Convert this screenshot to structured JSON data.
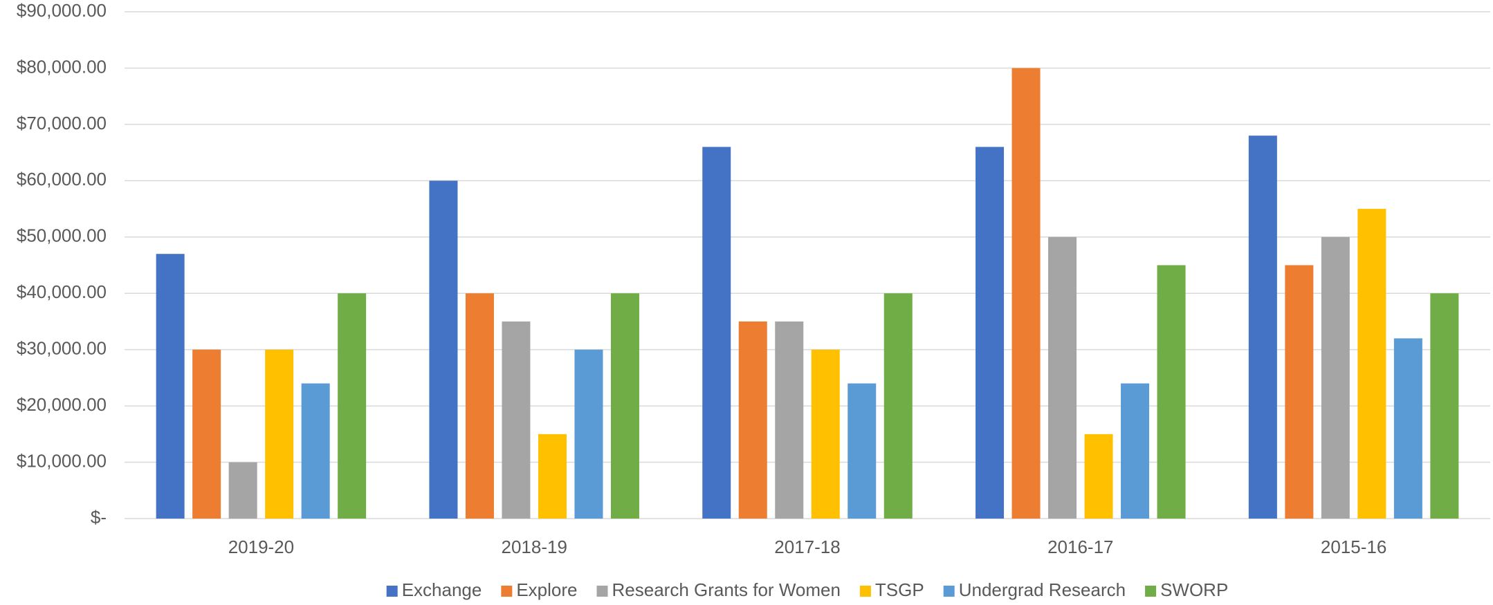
{
  "chart_data": {
    "type": "bar",
    "categories": [
      "2019-20",
      "2018-19",
      "2017-18",
      "2016-17",
      "2015-16"
    ],
    "series": [
      {
        "name": "Exchange",
        "color": "#4472c4",
        "values": [
          47000,
          60000,
          66000,
          66000,
          68000
        ]
      },
      {
        "name": "Explore",
        "color": "#ed7d31",
        "values": [
          30000,
          40000,
          35000,
          80000,
          45000
        ]
      },
      {
        "name": "Research Grants for Women",
        "color": "#a5a5a5",
        "values": [
          10000,
          35000,
          35000,
          50000,
          50000
        ]
      },
      {
        "name": "TSGP",
        "color": "#ffc000",
        "values": [
          30000,
          15000,
          30000,
          15000,
          55000
        ]
      },
      {
        "name": "Undergrad Research",
        "color": "#5b9bd5",
        "values": [
          24000,
          30000,
          24000,
          24000,
          32000
        ]
      },
      {
        "name": "SWORP",
        "color": "#70ad47",
        "values": [
          40000,
          40000,
          40000,
          45000,
          40000
        ]
      }
    ],
    "ylim": [
      0,
      90000
    ],
    "yticks": [
      {
        "value": 0,
        "label": "$-"
      },
      {
        "value": 10000,
        "label": "$10,000.00"
      },
      {
        "value": 20000,
        "label": "$20,000.00"
      },
      {
        "value": 30000,
        "label": "$30,000.00"
      },
      {
        "value": 40000,
        "label": "$40,000.00"
      },
      {
        "value": 50000,
        "label": "$50,000.00"
      },
      {
        "value": 60000,
        "label": "$60,000.00"
      },
      {
        "value": 70000,
        "label": "$70,000.00"
      },
      {
        "value": 80000,
        "label": "$80,000.00"
      },
      {
        "value": 90000,
        "label": "$90,000.00"
      }
    ],
    "grid": true,
    "legend": "bottom"
  }
}
